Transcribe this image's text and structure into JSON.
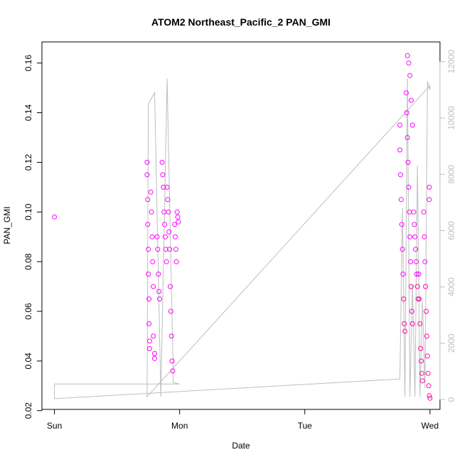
{
  "chart_data": {
    "type": "scatter",
    "title": "ATOM2 Northeast_Pacific_2 PAN_GMI",
    "xlabel": "Date",
    "ylabel": "PAN_GMI",
    "x_ticks": [
      "Sun",
      "Mon",
      "Tue",
      "Wed"
    ],
    "x_unit": "days since Sun 00:00",
    "xlim": [
      -0.1,
      3.08
    ],
    "ylim": [
      0.0205,
      0.1685
    ],
    "y_ticks": [
      0.02,
      0.04,
      0.06,
      0.08,
      0.1,
      0.12,
      0.14,
      0.16
    ],
    "y_tick_labels": [
      "0.02",
      "0.04",
      "0.06",
      "0.08",
      "0.10",
      "0.12",
      "0.14",
      "0.16"
    ],
    "y2_lim": [
      -350,
      12700
    ],
    "y2_ticks": [
      0,
      2000,
      4000,
      6000,
      8000,
      10000,
      12000
    ],
    "y2_tick_labels": [
      "0",
      "2000",
      "4000",
      "6000",
      "8000",
      "10000",
      "12000"
    ],
    "grid": false,
    "colors": {
      "points": "#ff00ff",
      "points_mixed": "#ff0aa8",
      "altitude_line": "#bebebe"
    },
    "series": [
      {
        "role": "PAN_GMI scatter (left axis)",
        "color": "#ff00ff",
        "points": [
          [
            0.0,
            0.098
          ],
          [
            0.74,
            0.12
          ],
          [
            0.74,
            0.115
          ],
          [
            0.745,
            0.105
          ],
          [
            0.745,
            0.095
          ],
          [
            0.75,
            0.085
          ],
          [
            0.75,
            0.075
          ],
          [
            0.755,
            0.065
          ],
          [
            0.755,
            0.055
          ],
          [
            0.76,
            0.048
          ],
          [
            0.76,
            0.045
          ],
          [
            0.77,
            0.108
          ],
          [
            0.775,
            0.1
          ],
          [
            0.78,
            0.09
          ],
          [
            0.785,
            0.08
          ],
          [
            0.79,
            0.07
          ],
          [
            0.79,
            0.05
          ],
          [
            0.8,
            0.043
          ],
          [
            0.8,
            0.041
          ],
          [
            0.82,
            0.09
          ],
          [
            0.825,
            0.085
          ],
          [
            0.83,
            0.075
          ],
          [
            0.835,
            0.068
          ],
          [
            0.84,
            0.065
          ],
          [
            0.86,
            0.12
          ],
          [
            0.865,
            0.115
          ],
          [
            0.87,
            0.11
          ],
          [
            0.875,
            0.1
          ],
          [
            0.88,
            0.095
          ],
          [
            0.885,
            0.09
          ],
          [
            0.89,
            0.085
          ],
          [
            0.895,
            0.08
          ],
          [
            0.9,
            0.11
          ],
          [
            0.905,
            0.105
          ],
          [
            0.91,
            0.1
          ],
          [
            0.915,
            0.092
          ],
          [
            0.92,
            0.085
          ],
          [
            0.925,
            0.07
          ],
          [
            0.93,
            0.06
          ],
          [
            0.935,
            0.05
          ],
          [
            0.94,
            0.04
          ],
          [
            0.945,
            0.036
          ],
          [
            0.96,
            0.095
          ],
          [
            0.965,
            0.09
          ],
          [
            0.97,
            0.085
          ],
          [
            0.975,
            0.08
          ],
          [
            0.98,
            0.1
          ],
          [
            0.985,
            0.098
          ],
          [
            0.99,
            0.096
          ],
          [
            2.76,
            0.135
          ],
          [
            2.76,
            0.125
          ],
          [
            2.765,
            0.115
          ],
          [
            2.77,
            0.105
          ],
          [
            2.775,
            0.095
          ],
          [
            2.78,
            0.085
          ],
          [
            2.785,
            0.075
          ],
          [
            2.79,
            0.065
          ],
          [
            2.795,
            0.055
          ],
          [
            2.8,
            0.052
          ],
          [
            2.81,
            0.148
          ],
          [
            2.815,
            0.14
          ],
          [
            2.82,
            0.13
          ],
          [
            2.825,
            0.12
          ],
          [
            2.83,
            0.11
          ],
          [
            2.835,
            0.1
          ],
          [
            2.84,
            0.09
          ],
          [
            2.845,
            0.08
          ],
          [
            2.85,
            0.07
          ],
          [
            2.855,
            0.06
          ],
          [
            2.86,
            0.055
          ],
          [
            2.82,
            0.163
          ],
          [
            2.83,
            0.16
          ],
          [
            2.84,
            0.155
          ],
          [
            2.85,
            0.145
          ],
          [
            2.86,
            0.135
          ],
          [
            2.87,
            0.1
          ],
          [
            2.875,
            0.095
          ],
          [
            2.88,
            0.09
          ],
          [
            2.885,
            0.085
          ],
          [
            2.89,
            0.08
          ],
          [
            2.895,
            0.075
          ],
          [
            2.9,
            0.07
          ],
          [
            2.905,
            0.065
          ],
          [
            2.91,
            0.075
          ],
          [
            2.915,
            0.065
          ],
          [
            2.92,
            0.055
          ],
          [
            2.925,
            0.045
          ],
          [
            2.93,
            0.04
          ],
          [
            2.935,
            0.035
          ],
          [
            2.94,
            0.032
          ],
          [
            2.95,
            0.1
          ],
          [
            2.955,
            0.09
          ],
          [
            2.96,
            0.08
          ],
          [
            2.965,
            0.07
          ],
          [
            2.97,
            0.06
          ],
          [
            2.975,
            0.05
          ],
          [
            2.98,
            0.042
          ],
          [
            2.985,
            0.035
          ],
          [
            2.99,
            0.03
          ],
          [
            2.995,
            0.026
          ],
          [
            3.0,
            0.025
          ],
          [
            2.995,
            0.11
          ],
          [
            2.995,
            0.105
          ]
        ]
      },
      {
        "role": "altitude line (right axis)",
        "color": "#bebebe",
        "points": [
          [
            0.0,
            550
          ],
          [
            0.0,
            30
          ],
          [
            2.76,
            730
          ],
          [
            2.78,
            6800
          ],
          [
            2.8,
            100
          ],
          [
            2.82,
            11400
          ],
          [
            2.84,
            100
          ],
          [
            2.86,
            4100
          ],
          [
            2.88,
            100
          ],
          [
            2.9,
            8300
          ],
          [
            2.92,
            100
          ],
          [
            2.94,
            3500
          ],
          [
            2.96,
            400
          ],
          [
            2.98,
            11300
          ],
          [
            3.0,
            11000
          ],
          [
            3.0,
            11150
          ],
          [
            0.74,
            100
          ],
          [
            0.75,
            10500
          ],
          [
            0.8,
            10900
          ],
          [
            0.85,
            100
          ],
          [
            0.9,
            11400
          ],
          [
            0.95,
            600
          ],
          [
            1.0,
            550
          ],
          [
            0.0,
            550
          ]
        ]
      }
    ]
  }
}
